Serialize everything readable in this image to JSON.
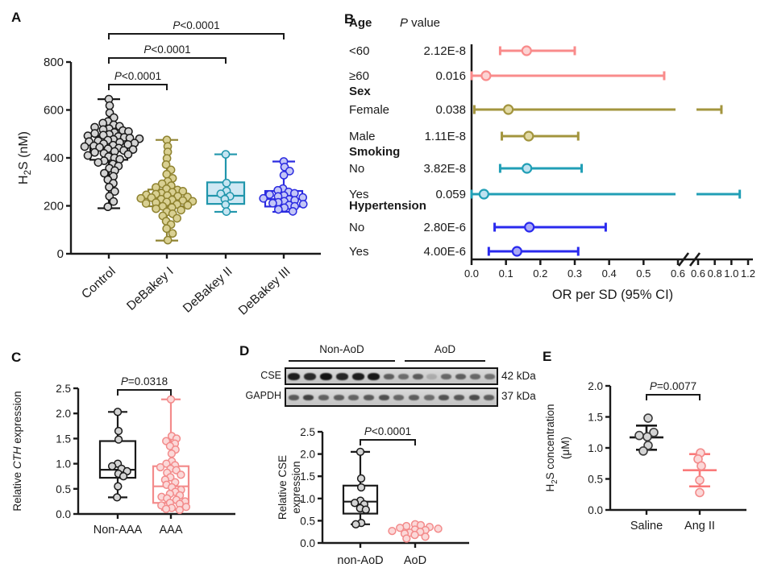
{
  "figure": {
    "background": "#ffffff"
  },
  "panels": [
    {
      "letter": "A"
    },
    {
      "letter": "B"
    },
    {
      "letter": "C"
    },
    {
      "letter": "D"
    },
    {
      "letter": "E"
    }
  ],
  "chart_data": [
    {
      "panel": "A",
      "type": "box-scatter",
      "ylabel_lines": [
        [
          {
            "t": "H"
          },
          {
            "t": "2",
            "sub": true
          },
          {
            "t": "S (nM)"
          }
        ]
      ],
      "ylim": [
        0,
        800
      ],
      "yticks": [
        {
          "v": 0,
          "t": "0"
        },
        {
          "v": 200,
          "t": "200"
        },
        {
          "v": 400,
          "t": "400"
        },
        {
          "v": 600,
          "t": "600"
        },
        {
          "v": 800,
          "t": "800"
        }
      ],
      "groups": [
        {
          "label": "Control",
          "stroke": "#1a1a1a",
          "pointFill": "#d4d4d4",
          "boxFill": "none",
          "box": {
            "q1": 392,
            "med": 440,
            "q3": 492,
            "lo": 190,
            "hi": 645
          },
          "points": [
            645,
            618,
            588,
            568,
            552,
            545,
            538,
            532,
            528,
            522,
            518,
            514,
            510,
            506,
            502,
            498,
            495,
            492,
            489,
            486,
            483,
            480,
            477,
            474,
            471,
            468,
            465,
            462,
            459,
            456,
            453,
            450,
            447,
            444,
            441,
            438,
            435,
            431,
            427,
            423,
            419,
            415,
            410,
            405,
            400,
            394,
            388,
            381,
            374,
            366,
            357,
            347,
            336,
            323,
            309,
            294,
            278,
            260,
            240,
            218,
            196
          ]
        },
        {
          "label": "DeBakey I",
          "stroke": "#8f8330",
          "pointFill": "#d9d092",
          "boxFill": "none",
          "box": {
            "q1": 198,
            "med": 232,
            "q3": 268,
            "lo": 55,
            "hi": 475
          },
          "points": [
            475,
            448,
            425,
            398,
            372,
            350,
            332,
            315,
            302,
            292,
            284,
            277,
            271,
            266,
            261,
            257,
            253,
            249,
            246,
            243,
            240,
            237,
            234,
            231,
            228,
            225,
            222,
            219,
            216,
            213,
            210,
            206,
            202,
            198,
            193,
            188,
            182,
            175,
            167,
            158,
            148,
            136,
            122,
            105,
            85,
            57
          ]
        },
        {
          "label": "DeBakey II",
          "stroke": "#2196ac",
          "pointFill": "#c6e5f2",
          "boxFill": "#cfe8f4",
          "box": {
            "q1": 208,
            "med": 242,
            "q3": 298,
            "lo": 175,
            "hi": 415
          },
          "points": [
            415,
            295,
            262,
            250,
            240,
            228,
            205,
            176
          ]
        },
        {
          "label": "DeBakey III",
          "stroke": "#2b2be0",
          "pointFill": "#c3c6f7",
          "boxFill": "none",
          "box": {
            "q1": 197,
            "med": 228,
            "q3": 262,
            "lo": 175,
            "hi": 385
          },
          "points": [
            385,
            362,
            345,
            328,
            272,
            265,
            258,
            252,
            247,
            243,
            239,
            235,
            231,
            227,
            223,
            219,
            215,
            211,
            207,
            203,
            198,
            192,
            185,
            177
          ]
        }
      ],
      "sig": [
        {
          "a": 0,
          "b": 1,
          "label": "P<0.0001"
        },
        {
          "a": 0,
          "b": 2,
          "label": "P<0.0001"
        },
        {
          "a": 0,
          "b": 3,
          "label": "P<0.0001"
        }
      ]
    },
    {
      "panel": "B",
      "type": "forest",
      "p_header": "P value",
      "xlabel": "OR per SD (95% CI)",
      "axis": {
        "segment1": {
          "v0": 0.0,
          "v1": 0.6,
          "ticks": [
            "0.0",
            "0.1",
            "0.2",
            "0.3",
            "0.4",
            "0.5",
            "0.6"
          ]
        },
        "segment2": {
          "v0": 0.6,
          "v1": 1.2,
          "ticks": [
            "0.6",
            "0.8",
            "1.0",
            "1.2"
          ]
        },
        "break": true
      },
      "groups": [
        {
          "header": "Age",
          "color": "#f98b8b",
          "markerFill": "#fcd3d3",
          "rows": [
            {
              "label": "<60",
              "p": "2.12E-8",
              "or": 0.16,
              "lo": 0.083,
              "hi": 0.3
            },
            {
              "label": "≥60",
              "p": "0.016",
              "or": 0.042,
              "lo": 0.0,
              "hi": 0.56
            }
          ]
        },
        {
          "header": "Sex",
          "color": "#a3953e",
          "markerFill": "#e2daa6",
          "rows": [
            {
              "label": "Female",
              "p": "0.038",
              "or": 0.107,
              "lo": 0.008,
              "hi": 0.88
            },
            {
              "label": "Male",
              "p": "1.11E-8",
              "or": 0.166,
              "lo": 0.088,
              "hi": 0.31
            }
          ]
        },
        {
          "header": "Smoking",
          "color": "#219fb6",
          "markerFill": "#bfe2f0",
          "rows": [
            {
              "label": "No",
              "p": "3.82E-8",
              "or": 0.161,
              "lo": 0.083,
              "hi": 0.32
            },
            {
              "label": "Yes",
              "p": "0.059",
              "or": 0.036,
              "lo": 0.0,
              "hi": 1.1
            }
          ]
        },
        {
          "header": "Hypertension",
          "color": "#2a2aee",
          "markerFill": "#aaaaf6",
          "rows": [
            {
              "label": "No",
              "p": "2.80E-6",
              "or": 0.168,
              "lo": 0.067,
              "hi": 0.39
            },
            {
              "label": "Yes",
              "p": "4.00E-6",
              "or": 0.132,
              "lo": 0.05,
              "hi": 0.31
            }
          ]
        }
      ]
    },
    {
      "panel": "C",
      "type": "box-scatter",
      "ylabel_lines": [
        [
          {
            "t": "Relative "
          },
          {
            "t": "CTH",
            "i": true
          },
          {
            "t": " expression"
          }
        ]
      ],
      "ylim": [
        0,
        2.5
      ],
      "yticks": [
        {
          "v": 0,
          "t": "0.0"
        },
        {
          "v": 0.5,
          "t": "0.5"
        },
        {
          "v": 1.0,
          "t": "1.0"
        },
        {
          "v": 1.5,
          "t": "1.5"
        },
        {
          "v": 2.0,
          "t": "2.0"
        },
        {
          "v": 2.5,
          "t": "2.5"
        }
      ],
      "groups": [
        {
          "label": "Non-AAA",
          "stroke": "#1a1a1a",
          "pointFill": "#d4d4d4",
          "boxFill": "none",
          "box": {
            "q1": 0.72,
            "med": 0.88,
            "q3": 1.45,
            "lo": 0.33,
            "hi": 2.03
          },
          "points": [
            2.03,
            1.65,
            1.48,
            1.0,
            0.95,
            0.9,
            0.85,
            0.8,
            0.75,
            0.55,
            0.33
          ]
        },
        {
          "label": "AAA",
          "stroke": "#f38b8b",
          "pointFill": "#fbd8d8",
          "boxFill": "none",
          "box": {
            "q1": 0.22,
            "med": 0.55,
            "q3": 0.95,
            "lo": 0.08,
            "hi": 2.28
          },
          "points": [
            2.28,
            1.55,
            1.5,
            1.45,
            1.4,
            1.35,
            1.28,
            1.2,
            1.05,
            1.0,
            0.97,
            0.93,
            0.9,
            0.87,
            0.82,
            0.78,
            0.73,
            0.68,
            0.63,
            0.58,
            0.53,
            0.48,
            0.44,
            0.4,
            0.37,
            0.34,
            0.31,
            0.28,
            0.25,
            0.22,
            0.2,
            0.17,
            0.14,
            0.12,
            0.1,
            0.08
          ]
        }
      ],
      "sig": [
        {
          "a": 0,
          "b": 1,
          "label": "P=0.0318"
        }
      ]
    },
    {
      "panel": "D",
      "type": "blot",
      "col_headers": [
        "Non-AoD",
        "AoD"
      ],
      "rows": [
        {
          "label": "CSE",
          "kda": "42 kDa",
          "bands": [
            0.95,
            0.88,
            1.0,
            0.9,
            0.95,
            0.97,
            0.6,
            0.52,
            0.62,
            0.18,
            0.55,
            0.6,
            0.55,
            0.5
          ]
        },
        {
          "label": "GAPDH",
          "kda": "37 kDa",
          "bands": [
            0.62,
            0.75,
            0.58,
            0.6,
            0.57,
            0.62,
            0.68,
            0.55,
            0.6,
            0.52,
            0.66,
            0.63,
            0.7,
            0.6
          ]
        }
      ]
    },
    {
      "panel": "D",
      "type": "box-scatter",
      "ylabel_lines": [
        [
          {
            "t": "Relative CSE"
          }
        ],
        [
          {
            "t": "expression"
          }
        ]
      ],
      "ylim": [
        0,
        2.5
      ],
      "yticks": [
        {
          "v": 0,
          "t": "0.0"
        },
        {
          "v": 0.5,
          "t": "0.5"
        },
        {
          "v": 1.0,
          "t": "1.0"
        },
        {
          "v": 1.5,
          "t": "1.5"
        },
        {
          "v": 2.0,
          "t": "2.0"
        },
        {
          "v": 2.5,
          "t": "2.5"
        }
      ],
      "groups": [
        {
          "label": "non-AoD",
          "stroke": "#1a1a1a",
          "pointFill": "#d4d4d4",
          "boxFill": "none",
          "box": {
            "q1": 0.66,
            "med": 0.93,
            "q3": 1.29,
            "lo": 0.42,
            "hi": 2.05
          },
          "points": [
            2.05,
            1.45,
            1.25,
            0.95,
            0.9,
            0.87,
            0.78,
            0.75,
            0.45,
            0.42
          ]
        },
        {
          "label": "AoD",
          "stroke": "#f38b8b",
          "pointFill": "#fbd8d8",
          "boxFill": "none",
          "box": null,
          "points": [
            0.42,
            0.4,
            0.38,
            0.36,
            0.34,
            0.32,
            0.3,
            0.29,
            0.27,
            0.25,
            0.23,
            0.21,
            0.18,
            0.14,
            0.1
          ]
        }
      ],
      "sig": [
        {
          "a": 0,
          "b": 1,
          "label": "P<0.0001"
        }
      ]
    },
    {
      "panel": "E",
      "type": "scatter-mean",
      "ylabel_lines": [
        [
          {
            "t": "H"
          },
          {
            "t": "2",
            "sub": true
          },
          {
            "t": "S concentration"
          }
        ],
        [
          {
            "t": "(μM)"
          }
        ]
      ],
      "ylim": [
        0,
        2.0
      ],
      "yticks": [
        {
          "v": 0,
          "t": "0.0"
        },
        {
          "v": 0.5,
          "t": "0.5"
        },
        {
          "v": 1.0,
          "t": "1.0"
        },
        {
          "v": 1.5,
          "t": "1.5"
        },
        {
          "v": 2.0,
          "t": "2.0"
        }
      ],
      "groups": [
        {
          "label": "Saline",
          "stroke": "#3a3a3a",
          "lineColor": "#1a1a1a",
          "pointFill": "#d4d4d4",
          "mean": 1.17,
          "sd_lo": 0.97,
          "sd_hi": 1.36,
          "points": [
            {
              "v": 1.48,
              "dx": 2
            },
            {
              "v": 1.25,
              "dx": 9
            },
            {
              "v": 1.2,
              "dx": -9
            },
            {
              "v": 1.18,
              "dx": 1
            },
            {
              "v": 1.04,
              "dx": 2
            },
            {
              "v": 0.95,
              "dx": -4
            }
          ]
        },
        {
          "label": "Ang II",
          "stroke": "#f38b8b",
          "lineColor": "#fa7a7a",
          "pointFill": "#fbd8d8",
          "mean": 0.64,
          "sd_lo": 0.38,
          "sd_hi": 0.9,
          "points": [
            {
              "v": 0.92,
              "dx": 1
            },
            {
              "v": 0.82,
              "dx": -2
            },
            {
              "v": 0.71,
              "dx": 2
            },
            {
              "v": 0.48,
              "dx": 0
            },
            {
              "v": 0.28,
              "dx": 0
            }
          ]
        }
      ],
      "sig": [
        {
          "a": 0,
          "b": 1,
          "label": "P=0.0077"
        }
      ]
    }
  ]
}
